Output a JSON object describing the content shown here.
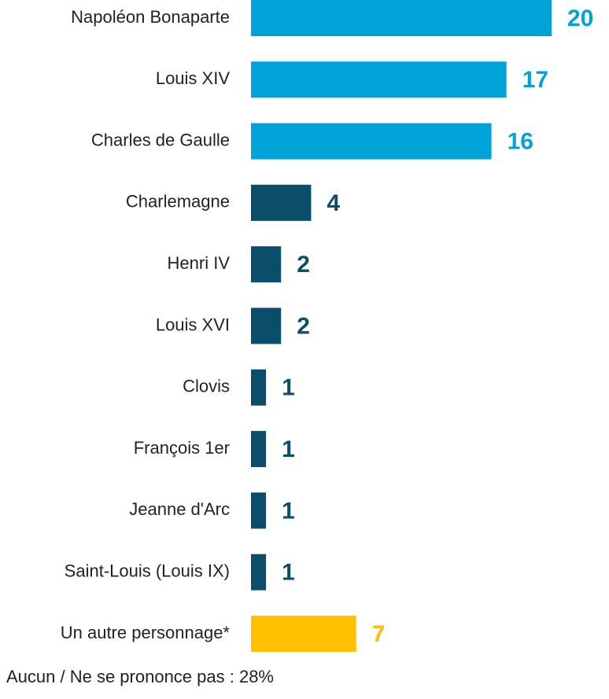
{
  "chart_data": {
    "type": "barh",
    "categories": [
      "Napoléon Bonaparte",
      "Louis XIV",
      "Charles de Gaulle",
      "Charlemagne",
      "Henri IV",
      "Louis XVI",
      "Clovis",
      "François 1er",
      "Jeanne d'Arc",
      "Saint-Louis (Louis IX)",
      "Un autre personnage*"
    ],
    "values": [
      20,
      17,
      16,
      4,
      2,
      2,
      1,
      1,
      1,
      1,
      7
    ],
    "colors": [
      "#00a3d7",
      "#00a3d7",
      "#00a3d7",
      "#0b4e6b",
      "#0b4e6b",
      "#0b4e6b",
      "#0b4e6b",
      "#0b4e6b",
      "#0b4e6b",
      "#0b4e6b",
      "#ffc000"
    ],
    "xlim": [
      0,
      20
    ],
    "note": "Aucun / Ne se prononce pas : 28%"
  }
}
